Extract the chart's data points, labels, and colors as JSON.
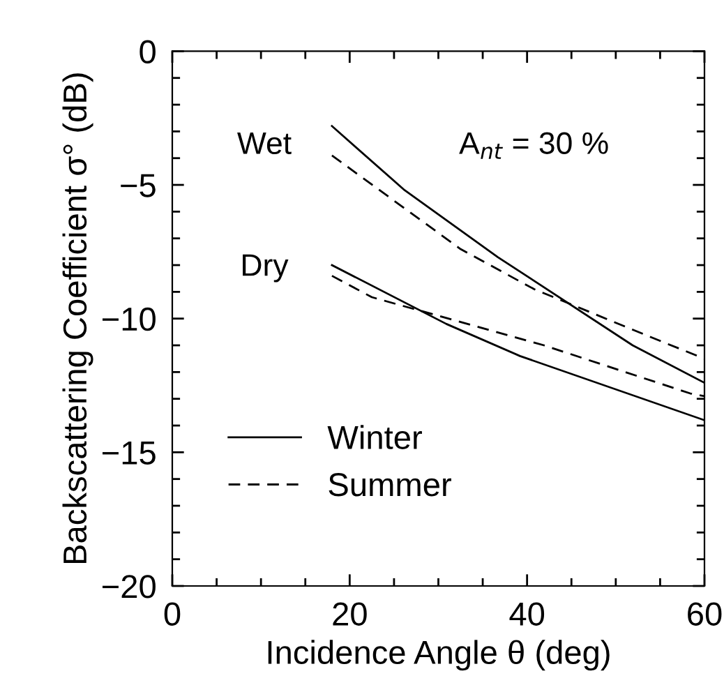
{
  "chart_data": {
    "type": "line",
    "xlabel": "Incidence Angle θ (deg)",
    "ylabel": "Backscattering Coefficient σ° (dB)",
    "xlim": [
      0,
      60
    ],
    "ylim": [
      -20,
      0
    ],
    "xticks": [
      0,
      {
        "value": 5,
        "label": null
      },
      {
        "value": 10,
        "label": null
      },
      {
        "value": 15,
        "label": null
      },
      20,
      {
        "value": 25,
        "label": null
      },
      {
        "value": 30,
        "label": null
      },
      {
        "value": 35,
        "label": null
      },
      40,
      {
        "value": 45,
        "label": null
      },
      {
        "value": 50,
        "label": null
      },
      {
        "value": 55,
        "label": null
      },
      60
    ],
    "yticks": [
      -20,
      {
        "value": -19,
        "label": null
      },
      {
        "value": -18,
        "label": null
      },
      {
        "value": -17,
        "label": null
      },
      {
        "value": -16,
        "label": null
      },
      -15,
      {
        "value": -14,
        "label": null
      },
      {
        "value": -13,
        "label": null
      },
      {
        "value": -12,
        "label": null
      },
      {
        "value": -11,
        "label": null
      },
      -10,
      {
        "value": -9,
        "label": null
      },
      {
        "value": -8,
        "label": null
      },
      {
        "value": -7,
        "label": null
      },
      {
        "value": -6,
        "label": null
      },
      -5,
      {
        "value": -4,
        "label": null
      },
      {
        "value": -3,
        "label": null
      },
      {
        "value": -2,
        "label": null
      },
      {
        "value": -1,
        "label": null
      },
      0
    ],
    "grid": false,
    "legend": "bottom left",
    "series": [
      {
        "name": "Winter",
        "color": "#000000",
        "line_style": "solid",
        "x": [
          18,
          26.2,
          36.7,
          51.9,
          60
        ],
        "values": [
          -2.8,
          -5.2,
          -7.7,
          -11.0,
          -12.4
        ]
      },
      {
        "name": "Summer",
        "color": "#000000",
        "line_style": "dashed",
        "x": [
          18,
          32.5,
          40.8,
          54,
          60
        ],
        "values": [
          -3.9,
          -7.4,
          -8.9,
          -10.7,
          -11.5
        ]
      },
      {
        "color": "#000000",
        "line_style": "solid",
        "x": [
          18,
          30.9,
          39.2,
          60
        ],
        "values": [
          -8.0,
          -10.2,
          -11.4,
          -13.8
        ]
      },
      {
        "color": "#000000",
        "line_style": "dashed",
        "x": [
          18,
          22.5,
          41.9,
          58.4,
          60
        ],
        "values": [
          -8.4,
          -9.2,
          -11.0,
          -12.8,
          -12.9
        ]
      }
    ],
    "annotations": [
      "Wet",
      "Dry",
      "A$_{nt}$ = 30 %"
    ]
  }
}
